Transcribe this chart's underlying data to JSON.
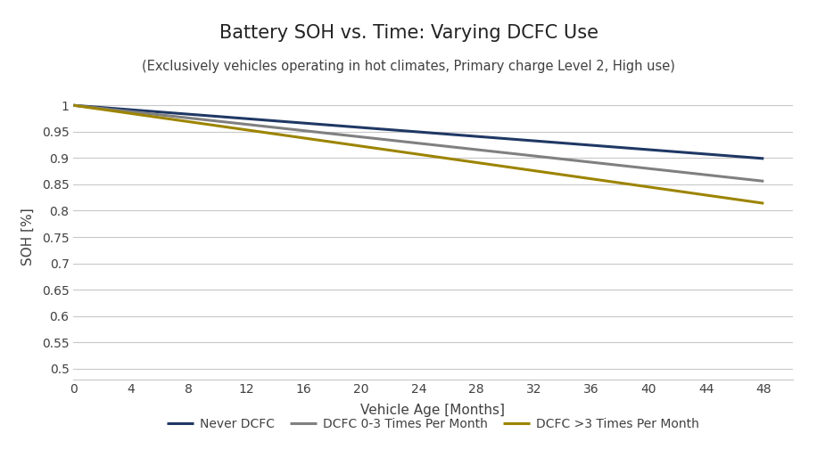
{
  "title": "Battery SOH vs. Time: Varying DCFC Use",
  "subtitle": "(Exclusively vehicles operating in hot climates, Primary charge Level 2, High use)",
  "xlabel": "Vehicle Age [Months]",
  "ylabel": "SOH [%]",
  "xlim": [
    0,
    50
  ],
  "ylim": [
    0.48,
    1.02
  ],
  "x_ticks": [
    0,
    4,
    8,
    12,
    16,
    20,
    24,
    28,
    32,
    36,
    40,
    44,
    48
  ],
  "y_ticks": [
    0.5,
    0.55,
    0.6,
    0.65,
    0.7,
    0.75,
    0.8,
    0.85,
    0.9,
    0.95,
    1.0
  ],
  "y_tick_labels": [
    "0.5",
    "0.55",
    "0.6",
    "0.65",
    "0.7",
    "0.75",
    "0.8",
    "0.85",
    "0.9",
    "0.95",
    "1"
  ],
  "series": [
    {
      "label": "Never DCFC",
      "x": [
        0,
        48
      ],
      "y": [
        1.0,
        0.899
      ],
      "color": "#1F3864",
      "linewidth": 2.2
    },
    {
      "label": "DCFC 0-3 Times Per Month",
      "x": [
        0,
        48
      ],
      "y": [
        1.0,
        0.856
      ],
      "color": "#808080",
      "linewidth": 2.2
    },
    {
      "label": "DCFC >3 Times Per Month",
      "x": [
        0,
        48
      ],
      "y": [
        1.0,
        0.814
      ],
      "color": "#9C8400",
      "linewidth": 2.2
    }
  ],
  "background_color": "#ffffff",
  "grid_color": "#c8c8c8",
  "title_fontsize": 15,
  "subtitle_fontsize": 10.5,
  "label_fontsize": 11,
  "tick_fontsize": 10,
  "legend_fontsize": 10,
  "text_color": "#404040"
}
